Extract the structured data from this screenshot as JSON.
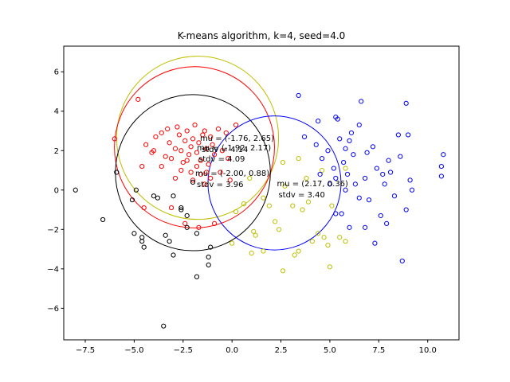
{
  "chart_data": {
    "type": "scatter",
    "title": "K-means algorithm, k=4, seed=4.0",
    "xlabel": "",
    "ylabel": "",
    "xlim": [
      -8.6,
      11.6
    ],
    "ylim": [
      -7.6,
      7.3
    ],
    "xticks": [
      -7.5,
      -5.0,
      -2.5,
      0.0,
      2.5,
      5.0,
      7.5,
      10.0
    ],
    "xtick_labels": [
      "−7.5",
      "−5.0",
      "−2.5",
      "0.0",
      "2.5",
      "5.0",
      "7.5",
      "10.0"
    ],
    "yticks": [
      -6,
      -4,
      -2,
      0,
      2,
      4,
      6
    ],
    "ytick_labels": [
      "−6",
      "−4",
      "−2",
      "0",
      "2",
      "4",
      "6"
    ],
    "grid": false,
    "series": [
      {
        "color": "#ff0000",
        "points": [
          [
            -4.8,
            4.6
          ],
          [
            -6.0,
            2.6
          ],
          [
            -4.4,
            2.3
          ],
          [
            -4.1,
            1.9
          ],
          [
            -3.9,
            2.7
          ],
          [
            -3.6,
            2.9
          ],
          [
            -3.3,
            3.1
          ],
          [
            -3.2,
            2.4
          ],
          [
            -3.1,
            1.6
          ],
          [
            -2.9,
            2.1
          ],
          [
            -2.8,
            3.2
          ],
          [
            -2.7,
            2.8
          ],
          [
            -2.6,
            2.0
          ],
          [
            -2.5,
            1.4
          ],
          [
            -2.4,
            2.5
          ],
          [
            -2.3,
            3.0
          ],
          [
            -2.2,
            1.8
          ],
          [
            -2.1,
            2.2
          ],
          [
            -2.0,
            2.6
          ],
          [
            -1.9,
            3.3
          ],
          [
            -1.8,
            1.9
          ],
          [
            -1.7,
            2.4
          ],
          [
            -1.6,
            1.5
          ],
          [
            -1.5,
            2.8
          ],
          [
            -1.4,
            3.0
          ],
          [
            -1.3,
            2.1
          ],
          [
            -1.2,
            1.3
          ],
          [
            -1.1,
            2.7
          ],
          [
            -1.0,
            2.3
          ],
          [
            -0.9,
            1.8
          ],
          [
            -0.7,
            3.1
          ],
          [
            -0.5,
            2.0
          ],
          [
            -0.3,
            2.9
          ],
          [
            -0.2,
            1.6
          ],
          [
            0.2,
            3.3
          ],
          [
            -2.6,
            1.0
          ],
          [
            -2.1,
            0.9
          ],
          [
            -1.6,
            0.8
          ],
          [
            -1.1,
            0.6
          ],
          [
            -0.6,
            0.9
          ],
          [
            -0.1,
            0.5
          ],
          [
            -2.9,
            0.6
          ],
          [
            -3.6,
            1.2
          ],
          [
            -4.6,
            1.2
          ],
          [
            -4.0,
            2.0
          ],
          [
            -3.4,
            1.7
          ],
          [
            -2.3,
            1.5
          ],
          [
            -1.8,
            1.2
          ],
          [
            -1.3,
            0.9
          ],
          [
            -3.1,
            -0.9
          ],
          [
            -2.4,
            -1.7
          ],
          [
            -1.7,
            -1.9
          ],
          [
            -0.9,
            -1.7
          ],
          [
            -4.5,
            -0.9
          ],
          [
            -2.0,
            0.5
          ],
          [
            -1.4,
            0.3
          ]
        ]
      },
      {
        "color": "#000000",
        "points": [
          [
            -8.0,
            0.0
          ],
          [
            -6.6,
            -1.5
          ],
          [
            -5.9,
            0.9
          ],
          [
            -5.1,
            -0.5
          ],
          [
            -4.9,
            0.0
          ],
          [
            -5.0,
            -2.2
          ],
          [
            -4.6,
            -2.4
          ],
          [
            -4.5,
            -2.9
          ],
          [
            -4.0,
            -0.3
          ],
          [
            -3.8,
            -0.4
          ],
          [
            -3.4,
            -2.3
          ],
          [
            -3.2,
            -2.6
          ],
          [
            -3.0,
            -0.3
          ],
          [
            -2.6,
            -1.0
          ],
          [
            -2.3,
            -1.3
          ],
          [
            -2.3,
            -1.9
          ],
          [
            -1.8,
            -2.2
          ],
          [
            -1.2,
            -3.4
          ],
          [
            -1.1,
            -2.9
          ],
          [
            -1.2,
            -3.8
          ],
          [
            -1.8,
            -4.4
          ],
          [
            -3.5,
            -6.9
          ],
          [
            -3.0,
            -3.3
          ],
          [
            -4.6,
            -2.6
          ],
          [
            -2.6,
            -0.9
          ],
          [
            -2.0,
            0.4
          ]
        ]
      },
      {
        "color": "#bfbf00",
        "points": [
          [
            0.0,
            -2.7
          ],
          [
            0.6,
            -0.7
          ],
          [
            0.2,
            -1.1
          ],
          [
            1.0,
            -3.2
          ],
          [
            1.1,
            -2.1
          ],
          [
            1.2,
            -2.3
          ],
          [
            1.6,
            -0.4
          ],
          [
            1.6,
            -3.1
          ],
          [
            1.9,
            -0.8
          ],
          [
            2.2,
            -1.6
          ],
          [
            2.4,
            -2.0
          ],
          [
            2.6,
            -4.1
          ],
          [
            2.6,
            1.4
          ],
          [
            3.1,
            -0.8
          ],
          [
            3.2,
            -3.3
          ],
          [
            3.4,
            -3.1
          ],
          [
            3.6,
            -1.0
          ],
          [
            3.9,
            -0.6
          ],
          [
            4.1,
            -2.6
          ],
          [
            4.4,
            -2.2
          ],
          [
            4.7,
            -2.4
          ],
          [
            4.9,
            -2.8
          ],
          [
            5.0,
            -3.9
          ],
          [
            5.5,
            -2.4
          ],
          [
            5.8,
            -2.6
          ],
          [
            5.1,
            -0.8
          ],
          [
            4.6,
            1.0
          ],
          [
            3.8,
            0.6
          ],
          [
            0.9,
            0.6
          ],
          [
            2.7,
            0.2
          ],
          [
            3.4,
            1.6
          ],
          [
            5.8,
            1.1
          ]
        ]
      },
      {
        "color": "#0000ff",
        "points": [
          [
            3.4,
            4.8
          ],
          [
            3.7,
            2.7
          ],
          [
            4.3,
            2.3
          ],
          [
            4.4,
            3.5
          ],
          [
            4.6,
            1.6
          ],
          [
            4.9,
            2.0
          ],
          [
            5.2,
            1.1
          ],
          [
            5.3,
            3.7
          ],
          [
            5.4,
            3.6
          ],
          [
            5.5,
            2.6
          ],
          [
            5.7,
            1.4
          ],
          [
            5.8,
            2.1
          ],
          [
            5.9,
            0.8
          ],
          [
            6.0,
            2.5
          ],
          [
            6.1,
            2.9
          ],
          [
            6.2,
            1.8
          ],
          [
            6.3,
            0.3
          ],
          [
            6.5,
            3.3
          ],
          [
            6.6,
            4.5
          ],
          [
            6.8,
            0.6
          ],
          [
            6.9,
            1.9
          ],
          [
            7.0,
            -0.5
          ],
          [
            7.2,
            2.2
          ],
          [
            7.4,
            1.1
          ],
          [
            7.6,
            -1.3
          ],
          [
            7.8,
            0.3
          ],
          [
            8.0,
            1.5
          ],
          [
            8.1,
            0.9
          ],
          [
            8.3,
            -0.3
          ],
          [
            8.5,
            2.8
          ],
          [
            8.7,
            -3.6
          ],
          [
            8.9,
            4.4
          ],
          [
            9.0,
            2.8
          ],
          [
            9.1,
            0.5
          ],
          [
            10.8,
            1.8
          ],
          [
            10.7,
            1.2
          ],
          [
            10.7,
            0.7
          ],
          [
            5.6,
            -1.2
          ],
          [
            6.0,
            -1.9
          ],
          [
            6.8,
            -1.9
          ],
          [
            7.3,
            -2.7
          ],
          [
            7.9,
            -1.7
          ],
          [
            8.9,
            -1.0
          ],
          [
            5.3,
            -1.2
          ],
          [
            6.5,
            -0.4
          ],
          [
            7.7,
            0.8
          ],
          [
            8.6,
            1.7
          ],
          [
            9.2,
            0.0
          ],
          [
            5.0,
            0.3
          ],
          [
            5.8,
            0.0
          ],
          [
            4.5,
            0.8
          ],
          [
            5.3,
            0.6
          ]
        ]
      }
    ],
    "circles": [
      {
        "color": "#bfbf00",
        "center": [
          -1.76,
          2.65
        ],
        "radius": 4.14
      },
      {
        "color": "#ff0000",
        "center": [
          -1.92,
          2.17
        ],
        "radius": 4.09
      },
      {
        "color": "#000000",
        "center": [
          -2.0,
          0.88
        ],
        "radius": 3.96
      },
      {
        "color": "#0000ff",
        "center": [
          2.17,
          0.36
        ],
        "radius": 3.4
      }
    ],
    "annotations": [
      {
        "lines": [
          "mu = (-1.76, 2.65)",
          "stdv = 4.14"
        ],
        "at": [
          -1.76,
          2.65
        ]
      },
      {
        "lines": [
          "mu = (-1.92, 2.17)",
          "stdv = 4.09"
        ],
        "at": [
          -1.92,
          2.17
        ]
      },
      {
        "lines": [
          "mu = (-2.00, 0.88)",
          "stdv = 3.96"
        ],
        "at": [
          -2.0,
          0.88
        ]
      },
      {
        "lines": [
          "mu = (2.17, 0.36)",
          "stdv = 3.40"
        ],
        "at": [
          2.17,
          0.36
        ]
      }
    ]
  }
}
